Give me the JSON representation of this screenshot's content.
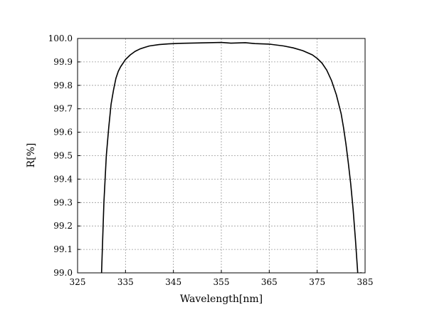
{
  "chart_data": {
    "type": "line",
    "title": "",
    "xlabel": "Wavelength[nm]",
    "ylabel": "R[%]",
    "xlim": [
      325,
      385
    ],
    "ylim": [
      99.0,
      100.0
    ],
    "xticks": [
      325,
      335,
      345,
      355,
      365,
      375,
      385
    ],
    "yticks": [
      99.0,
      99.1,
      99.2,
      99.3,
      99.4,
      99.5,
      99.6,
      99.7,
      99.8,
      99.9,
      100.0
    ],
    "xtick_labels": [
      "325",
      "335",
      "345",
      "355",
      "365",
      "375",
      "385"
    ],
    "ytick_labels": [
      "99.0",
      "99.1",
      "99.2",
      "99.3",
      "99.4",
      "99.5",
      "99.6",
      "99.7",
      "99.8",
      "99.9",
      "100.0"
    ],
    "grid": true,
    "series": [
      {
        "color": "#000000",
        "x": [
          330.0,
          330.5,
          331.0,
          331.5,
          332.0,
          332.5,
          333.0,
          333.5,
          334.0,
          334.5,
          335.0,
          336.0,
          337.0,
          338.0,
          339.0,
          340.0,
          342.0,
          344.0,
          346.0,
          350.0,
          355.0,
          357.0,
          360.0,
          362.0,
          365.0,
          368.0,
          370.0,
          372.0,
          374.0,
          375.0,
          376.0,
          377.0,
          378.0,
          379.0,
          380.0,
          380.5,
          381.0,
          381.5,
          382.0,
          382.5,
          383.0,
          383.5,
          384.0,
          384.3
        ],
        "y": [
          99.0,
          99.3,
          99.5,
          99.62,
          99.72,
          99.78,
          99.83,
          99.86,
          99.88,
          99.895,
          99.91,
          99.93,
          99.945,
          99.955,
          99.962,
          99.968,
          99.974,
          99.977,
          99.979,
          99.981,
          99.983,
          99.98,
          99.982,
          99.978,
          99.976,
          99.968,
          99.96,
          99.948,
          99.93,
          99.915,
          99.895,
          99.865,
          99.82,
          99.76,
          99.68,
          99.62,
          99.55,
          99.47,
          99.38,
          99.27,
          99.14,
          98.99,
          99.0,
          99.0
        ]
      }
    ]
  }
}
